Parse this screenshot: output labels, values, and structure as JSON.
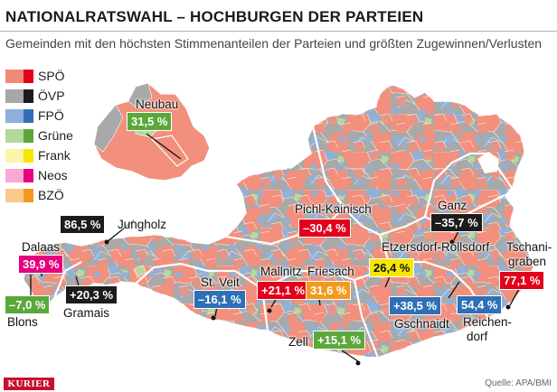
{
  "header": {
    "title": "NATIONALRATSWAHL – HOCHBURGEN DER PARTEIEN",
    "subtitle": "Gemeinden mit den höchsten Stimmenanteilen der Parteien und größten Zugewinnen/Verlusten"
  },
  "legend": [
    {
      "party": "SPÖ",
      "light": "#f08a78",
      "dark": "#e2001a"
    },
    {
      "party": "ÖVP",
      "light": "#a7a7a7",
      "dark": "#1c1c1c"
    },
    {
      "party": "FPÖ",
      "light": "#8eb0d9",
      "dark": "#2f6fb6"
    },
    {
      "party": "Grüne",
      "light": "#b3d99a",
      "dark": "#5ba83a"
    },
    {
      "party": "Frank",
      "light": "#faf5a8",
      "dark": "#f7e600"
    },
    {
      "party": "Neos",
      "light": "#f6a9d3",
      "dark": "#e5007e"
    },
    {
      "party": "BZÖ",
      "light": "#fbc98a",
      "dark": "#f39a1e"
    }
  ],
  "inset": {
    "name": "Neubau",
    "value": "31,5 %",
    "color": "#5ba83a"
  },
  "callouts": [
    {
      "id": "jungholz",
      "value": "86,5 %",
      "label": "Jungholz",
      "color": "#1c1c1c"
    },
    {
      "id": "dalaas",
      "value": "39,9 %",
      "label": "Dalaas",
      "color": "#e5007e"
    },
    {
      "id": "blons",
      "value": "–7,0 %",
      "label": "Blons",
      "color": "#5ba83a"
    },
    {
      "id": "gramais",
      "value": "+20,3 %",
      "label": "Gramais",
      "color": "#1c1c1c"
    },
    {
      "id": "pichl",
      "value": "–30,4 %",
      "label": "Pichl-Kainisch",
      "color": "#e2001a"
    },
    {
      "id": "stveit",
      "value": "–16,1 %",
      "label": "St. Veit",
      "color": "#2f6fb6"
    },
    {
      "id": "mallnitz",
      "value": "+21,1 %",
      "label": "Mallnitz",
      "color": "#e2001a"
    },
    {
      "id": "friesach",
      "value": "31,6 %",
      "label": "Friesach",
      "color": "#f39a1e"
    },
    {
      "id": "zell",
      "value": "+15,1 %",
      "label": "Zell",
      "color": "#5ba83a"
    },
    {
      "id": "ganz",
      "value": "–35,7 %",
      "label": "Ganz",
      "color": "#1c1c1c"
    },
    {
      "id": "etzersdorf",
      "value": "26,4 %",
      "label": "Etzersdorf-Rollsdorf",
      "color": "#f7e600"
    },
    {
      "id": "gschnaidt",
      "value": "+38,5 %",
      "label": "Gschnaidt",
      "color": "#2f6fb6"
    },
    {
      "id": "reichendorf",
      "value": "54,4 %",
      "label_line1": "Reichen-",
      "label_line2": "dorf",
      "color": "#2f6fb6"
    },
    {
      "id": "tschanigraben",
      "value": "77,1 %",
      "label_line1": "Tschani-",
      "label_line2": "graben",
      "color": "#e2001a"
    }
  ],
  "footer": {
    "brand": "KURIER",
    "source": "Quelle: APA/BMI"
  }
}
